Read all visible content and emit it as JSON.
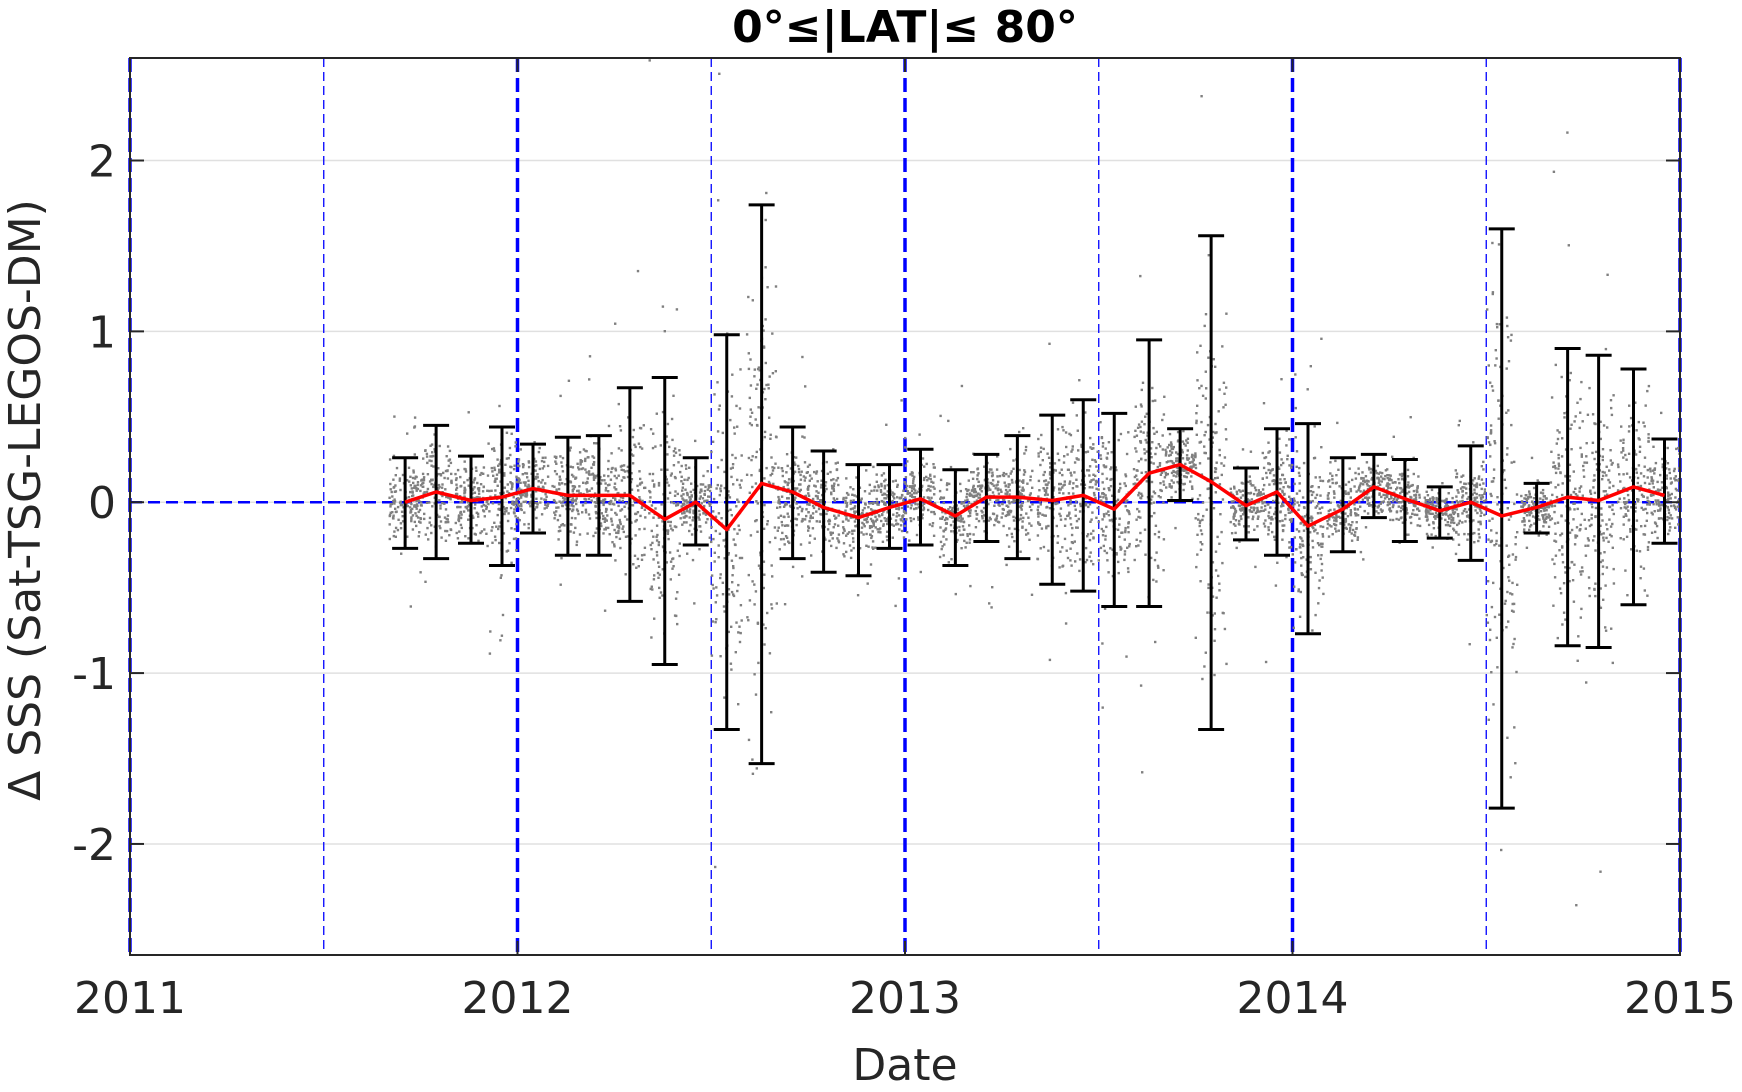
{
  "chart_data": {
    "type": "scatter",
    "title": "0°≤|LAT|≤ 80°",
    "xlabel": "Date",
    "ylabel": "Δ SSS (Sat-TSG-LEGOS-DM)",
    "xlim": [
      2011.0,
      2015.0
    ],
    "ylim": [
      -2.65,
      2.6
    ],
    "x_ticks": [
      2011,
      2012,
      2013,
      2014,
      2015
    ],
    "x_tick_labels": [
      "2011",
      "2012",
      "2013",
      "2014",
      "2015"
    ],
    "y_ticks": [
      2,
      1,
      0,
      -1,
      -2
    ],
    "y_tick_labels": [
      "2",
      "1",
      "0",
      "-1",
      "-2"
    ],
    "grid": true,
    "colors": {
      "points": "#808080",
      "mean_line": "#ff0000",
      "error_bars": "#000000",
      "reference_lines": "#0000ff",
      "grid": "#e0e0e0"
    },
    "reference_lines": {
      "year_boundaries": [
        2011.0,
        2012.0,
        2013.0,
        2014.0,
        2015.0
      ],
      "half_years": [
        2011.5,
        2012.5,
        2013.5,
        2014.5
      ],
      "zero_line": 0
    },
    "series": [
      {
        "kind": "monthly_mean_with_error_bars",
        "x": [
          2011.71,
          2011.79,
          2011.88,
          2011.96,
          2012.04,
          2012.13,
          2012.21,
          2012.29,
          2012.38,
          2012.46,
          2012.54,
          2012.63,
          2012.71,
          2012.79,
          2012.88,
          2012.96,
          2013.04,
          2013.13,
          2013.21,
          2013.29,
          2013.38,
          2013.46,
          2013.54,
          2013.63,
          2013.71,
          2013.79,
          2013.88,
          2013.96,
          2014.04,
          2014.13,
          2014.21,
          2014.29,
          2014.38,
          2014.46,
          2014.54,
          2014.63,
          2014.71,
          2014.79,
          2014.88,
          2014.96
        ],
        "mean": [
          0.0,
          0.06,
          0.01,
          0.03,
          0.08,
          0.04,
          0.04,
          0.04,
          -0.1,
          0.0,
          -0.16,
          0.11,
          0.06,
          -0.03,
          -0.09,
          -0.03,
          0.02,
          -0.08,
          0.03,
          0.03,
          0.01,
          0.04,
          -0.04,
          0.17,
          0.22,
          0.12,
          -0.02,
          0.06,
          -0.14,
          -0.04,
          0.09,
          0.02,
          -0.05,
          0.0,
          -0.08,
          -0.03,
          0.03,
          0.01,
          0.09,
          0.04
        ],
        "upper": [
          0.26,
          0.45,
          0.27,
          0.44,
          0.34,
          0.38,
          0.39,
          0.67,
          0.73,
          0.26,
          0.98,
          1.74,
          0.44,
          0.3,
          0.22,
          0.22,
          0.31,
          0.19,
          0.28,
          0.39,
          0.51,
          0.6,
          0.52,
          0.95,
          0.43,
          1.56,
          0.2,
          0.43,
          0.46,
          0.26,
          0.28,
          0.25,
          0.09,
          0.33,
          1.6,
          0.11,
          0.9,
          0.86,
          0.78,
          0.37
        ],
        "lower": [
          -0.27,
          -0.33,
          -0.24,
          -0.37,
          -0.18,
          -0.31,
          -0.31,
          -0.58,
          -0.95,
          -0.25,
          -1.33,
          -1.53,
          -0.33,
          -0.41,
          -0.43,
          -0.27,
          -0.25,
          -0.37,
          -0.23,
          -0.33,
          -0.48,
          -0.52,
          -0.61,
          -0.61,
          0.01,
          -1.33,
          -0.22,
          -0.31,
          -0.77,
          -0.29,
          -0.09,
          -0.23,
          -0.21,
          -0.34,
          -1.79,
          -0.18,
          -0.84,
          -0.85,
          -0.6,
          -0.24
        ]
      }
    ]
  }
}
